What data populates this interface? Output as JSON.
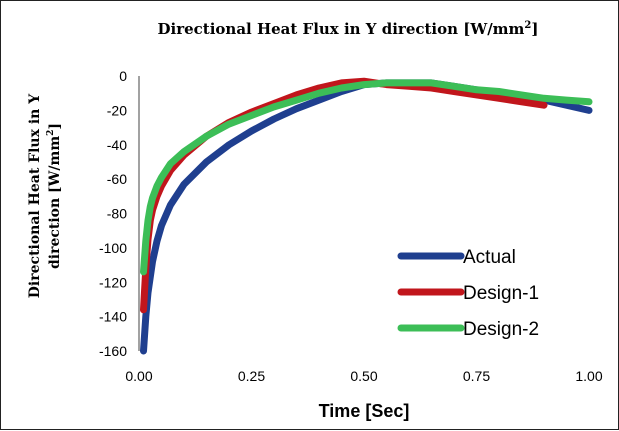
{
  "chart_data": {
    "type": "line",
    "title": "Directional Heat Flux in Y direction [W/mm",
    "title_sup": "2",
    "title_end": "]",
    "ylabel_line1": "Directional Heat Flux in Y",
    "ylabel_line2": "direction [W/mm",
    "ylabel_sup": "2",
    "ylabel_end": "]",
    "xlabel": "Time [Sec]",
    "xlim": [
      0,
      1
    ],
    "ylim": [
      -160,
      0
    ],
    "x_ticks": [
      "0.00",
      "0.25",
      "0.50",
      "0.75",
      "1.00"
    ],
    "x_tick_values": [
      0,
      0.25,
      0.5,
      0.75,
      1.0
    ],
    "y_ticks": [
      "0",
      "-20",
      "-40",
      "-60",
      "-80",
      "-100",
      "-120",
      "-140",
      "-160"
    ],
    "y_tick_values": [
      0,
      -20,
      -40,
      -60,
      -80,
      -100,
      -120,
      -140,
      -160
    ],
    "grid": false,
    "legend_position": "bottom-right",
    "series": [
      {
        "name": "Actual",
        "color": "#1f3f8f",
        "x": [
          0.01,
          0.015,
          0.02,
          0.03,
          0.04,
          0.05,
          0.07,
          0.1,
          0.15,
          0.2,
          0.25,
          0.3,
          0.35,
          0.4,
          0.45,
          0.5,
          0.55,
          0.6,
          0.65,
          0.7,
          0.75,
          0.8,
          0.85,
          0.9,
          0.95,
          1.0
        ],
        "y": [
          -160,
          -140,
          -126,
          -108,
          -96,
          -87,
          -75,
          -63,
          -50,
          -40,
          -32,
          -25,
          -19,
          -14,
          -9,
          -5,
          -4,
          -4,
          -4,
          -6,
          -8,
          -10,
          -12,
          -14,
          -17,
          -20
        ]
      },
      {
        "name": "Design-1",
        "color": "#c1161c",
        "x": [
          0.01,
          0.015,
          0.02,
          0.025,
          0.03,
          0.04,
          0.05,
          0.07,
          0.1,
          0.15,
          0.2,
          0.25,
          0.3,
          0.35,
          0.4,
          0.45,
          0.5,
          0.55,
          0.6,
          0.65,
          0.7,
          0.75,
          0.8,
          0.85,
          0.9
        ],
        "y": [
          -136,
          -112,
          -95,
          -84,
          -78,
          -70,
          -64,
          -55,
          -46,
          -35,
          -27,
          -21,
          -16,
          -11,
          -7,
          -4,
          -3,
          -5,
          -6,
          -7,
          -9,
          -11,
          -13,
          -15,
          -17
        ]
      },
      {
        "name": "Design-2",
        "color": "#3cbe57",
        "x": [
          0.01,
          0.015,
          0.02,
          0.025,
          0.03,
          0.04,
          0.05,
          0.07,
          0.1,
          0.15,
          0.2,
          0.25,
          0.3,
          0.35,
          0.4,
          0.45,
          0.5,
          0.55,
          0.6,
          0.65,
          0.7,
          0.75,
          0.8,
          0.85,
          0.9,
          0.95,
          1.0
        ],
        "y": [
          -114,
          -96,
          -84,
          -76,
          -71,
          -64,
          -59,
          -51,
          -44,
          -35,
          -28,
          -23,
          -18,
          -14,
          -10,
          -7,
          -5,
          -4,
          -4,
          -4,
          -6,
          -8,
          -9,
          -11,
          -13,
          -14,
          -15
        ]
      }
    ]
  }
}
